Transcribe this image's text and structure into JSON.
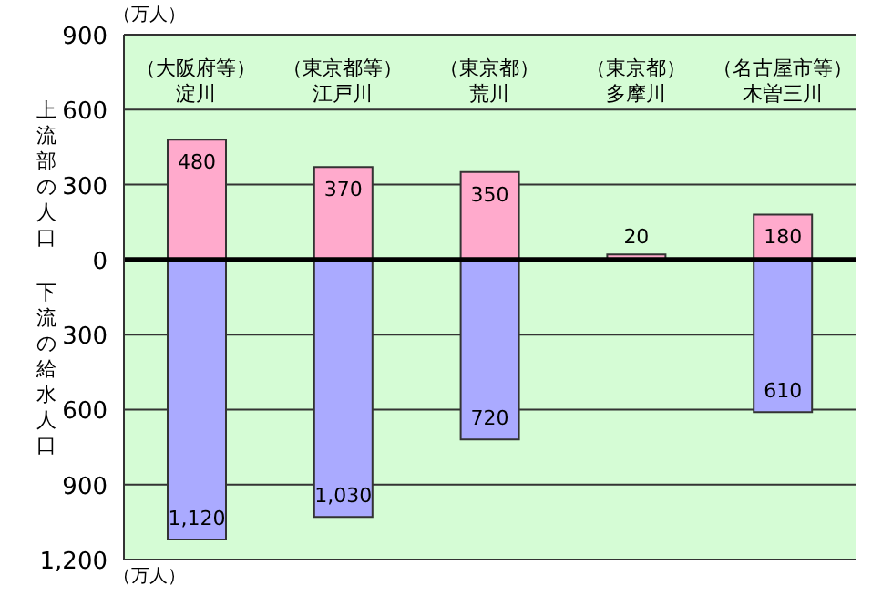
{
  "chart_data": {
    "type": "bar",
    "stacked": true,
    "categories": [
      "（大阪府等）淀川",
      "（東京都等）江戸川",
      "（東京都）荒川",
      "（東京都）多摩川",
      "（名古屋市等）木曽三川"
    ],
    "series": [
      {
        "color": "#ffaacc",
        "values": [
          480,
          370,
          350,
          20,
          180
        ],
        "data_labels": true
      },
      {
        "color": "#aaaaff",
        "values": [
          1120,
          1030,
          720,
          null,
          610
        ],
        "axis": "y2",
        "value_labels": [
          "1,120",
          "1,030",
          "720",
          null,
          "610"
        ]
      }
    ],
    "ylim": [
      -1200,
      900
    ],
    "yticks": [
      900,
      600,
      300,
      0
    ],
    "y2lim": [
      1200,
      -900
    ],
    "y2ticks": [
      300,
      600,
      900,
      {
        "value": 1200,
        "label": "1,200"
      }
    ],
    "grid": "y",
    "ref_lines": [
      {
        "axis": "y",
        "value": 0,
        "color": "#000000"
      }
    ],
    "annotations": [
      "（万人）",
      "（万人）",
      "上流部の人口",
      "下流の給水人口"
    ],
    "legend": false
  }
}
